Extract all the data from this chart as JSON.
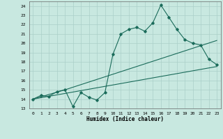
{
  "xlabel": "Humidex (Indice chaleur)",
  "xlim": [
    -0.5,
    23.5
  ],
  "ylim": [
    13,
    24.5
  ],
  "yticks": [
    13,
    14,
    15,
    16,
    17,
    18,
    19,
    20,
    21,
    22,
    23,
    24
  ],
  "xticks": [
    0,
    1,
    2,
    3,
    4,
    5,
    6,
    7,
    8,
    9,
    10,
    11,
    12,
    13,
    14,
    15,
    16,
    17,
    18,
    19,
    20,
    21,
    22,
    23
  ],
  "bg_color": "#c8e8e0",
  "grid_color": "#aacfc8",
  "line_color": "#1a6b5a",
  "line1_x": [
    0,
    1,
    2,
    3,
    4,
    5,
    6,
    7,
    8,
    9,
    10,
    11,
    12,
    13,
    14,
    15,
    16,
    17,
    18,
    19,
    20,
    21,
    22,
    23
  ],
  "line1_y": [
    14.0,
    14.4,
    14.3,
    14.8,
    15.0,
    13.2,
    14.7,
    14.2,
    13.9,
    14.7,
    18.8,
    21.0,
    21.5,
    21.7,
    21.3,
    22.2,
    24.1,
    22.8,
    21.5,
    20.4,
    20.0,
    19.8,
    18.3,
    17.7
  ],
  "line2_x": [
    0,
    23
  ],
  "line2_y": [
    14.0,
    17.5
  ],
  "line3_x": [
    0,
    4,
    23
  ],
  "line3_y": [
    14.0,
    15.0,
    20.3
  ]
}
